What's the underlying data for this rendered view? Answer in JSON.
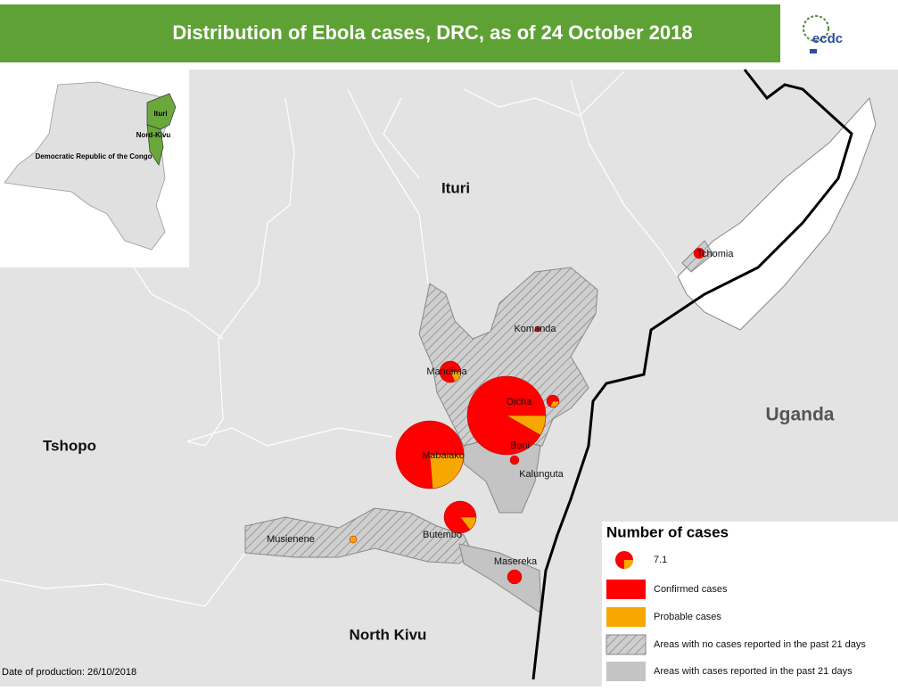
{
  "header": {
    "title": "Distribution of Ebola cases, DRC, as of 24 October 2018",
    "logo": "ecdc"
  },
  "inset": {
    "labels": [
      "Ituri",
      "Nord-Kivu",
      "Democratic Republic of the Congo"
    ]
  },
  "regions": [
    "Ituri",
    "Tshopo",
    "North Kivu",
    "Uganda"
  ],
  "places": [
    "Komanda",
    "Mandima",
    "Oicha",
    "Beni",
    "Kalunguta",
    "Mabalako",
    "Butembo",
    "Musienene",
    "Masereka",
    "Tchomia"
  ],
  "legend": {
    "title": "Number of cases",
    "size_label": "7.1",
    "items": [
      "Confirmed cases",
      "Probable cases",
      "Areas with no cases reported in the past 21 days",
      "Areas with cases reported in the past 21 days"
    ]
  },
  "footer": "Date of production: 26/10/2018"
}
